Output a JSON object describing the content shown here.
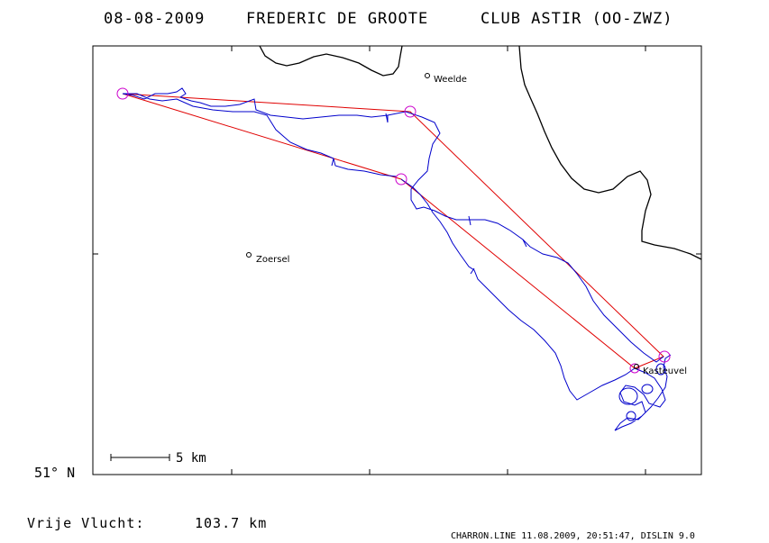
{
  "header": {
    "date": "08-08-2009",
    "pilot": "FREDERIC DE GROOTE",
    "club": "CLUB ASTIR (OO-ZWZ)"
  },
  "map": {
    "places": [
      {
        "name": "Weelde"
      },
      {
        "name": "Zoersel"
      },
      {
        "name": "Kasteuvel"
      }
    ],
    "scale_label": "5 km",
    "latitude_label": "51° N",
    "colors": {
      "task": "#e00000",
      "track": "#0000cc",
      "turnpoint": "#cc00cc",
      "border": "#000000"
    }
  },
  "summary": {
    "label": "Vrije Vlucht:",
    "distance": "103.7 km"
  },
  "footer": {
    "credit": "CHARRON.LINE 11.08.2009, 20:51:47, DISLIN 9.0"
  }
}
